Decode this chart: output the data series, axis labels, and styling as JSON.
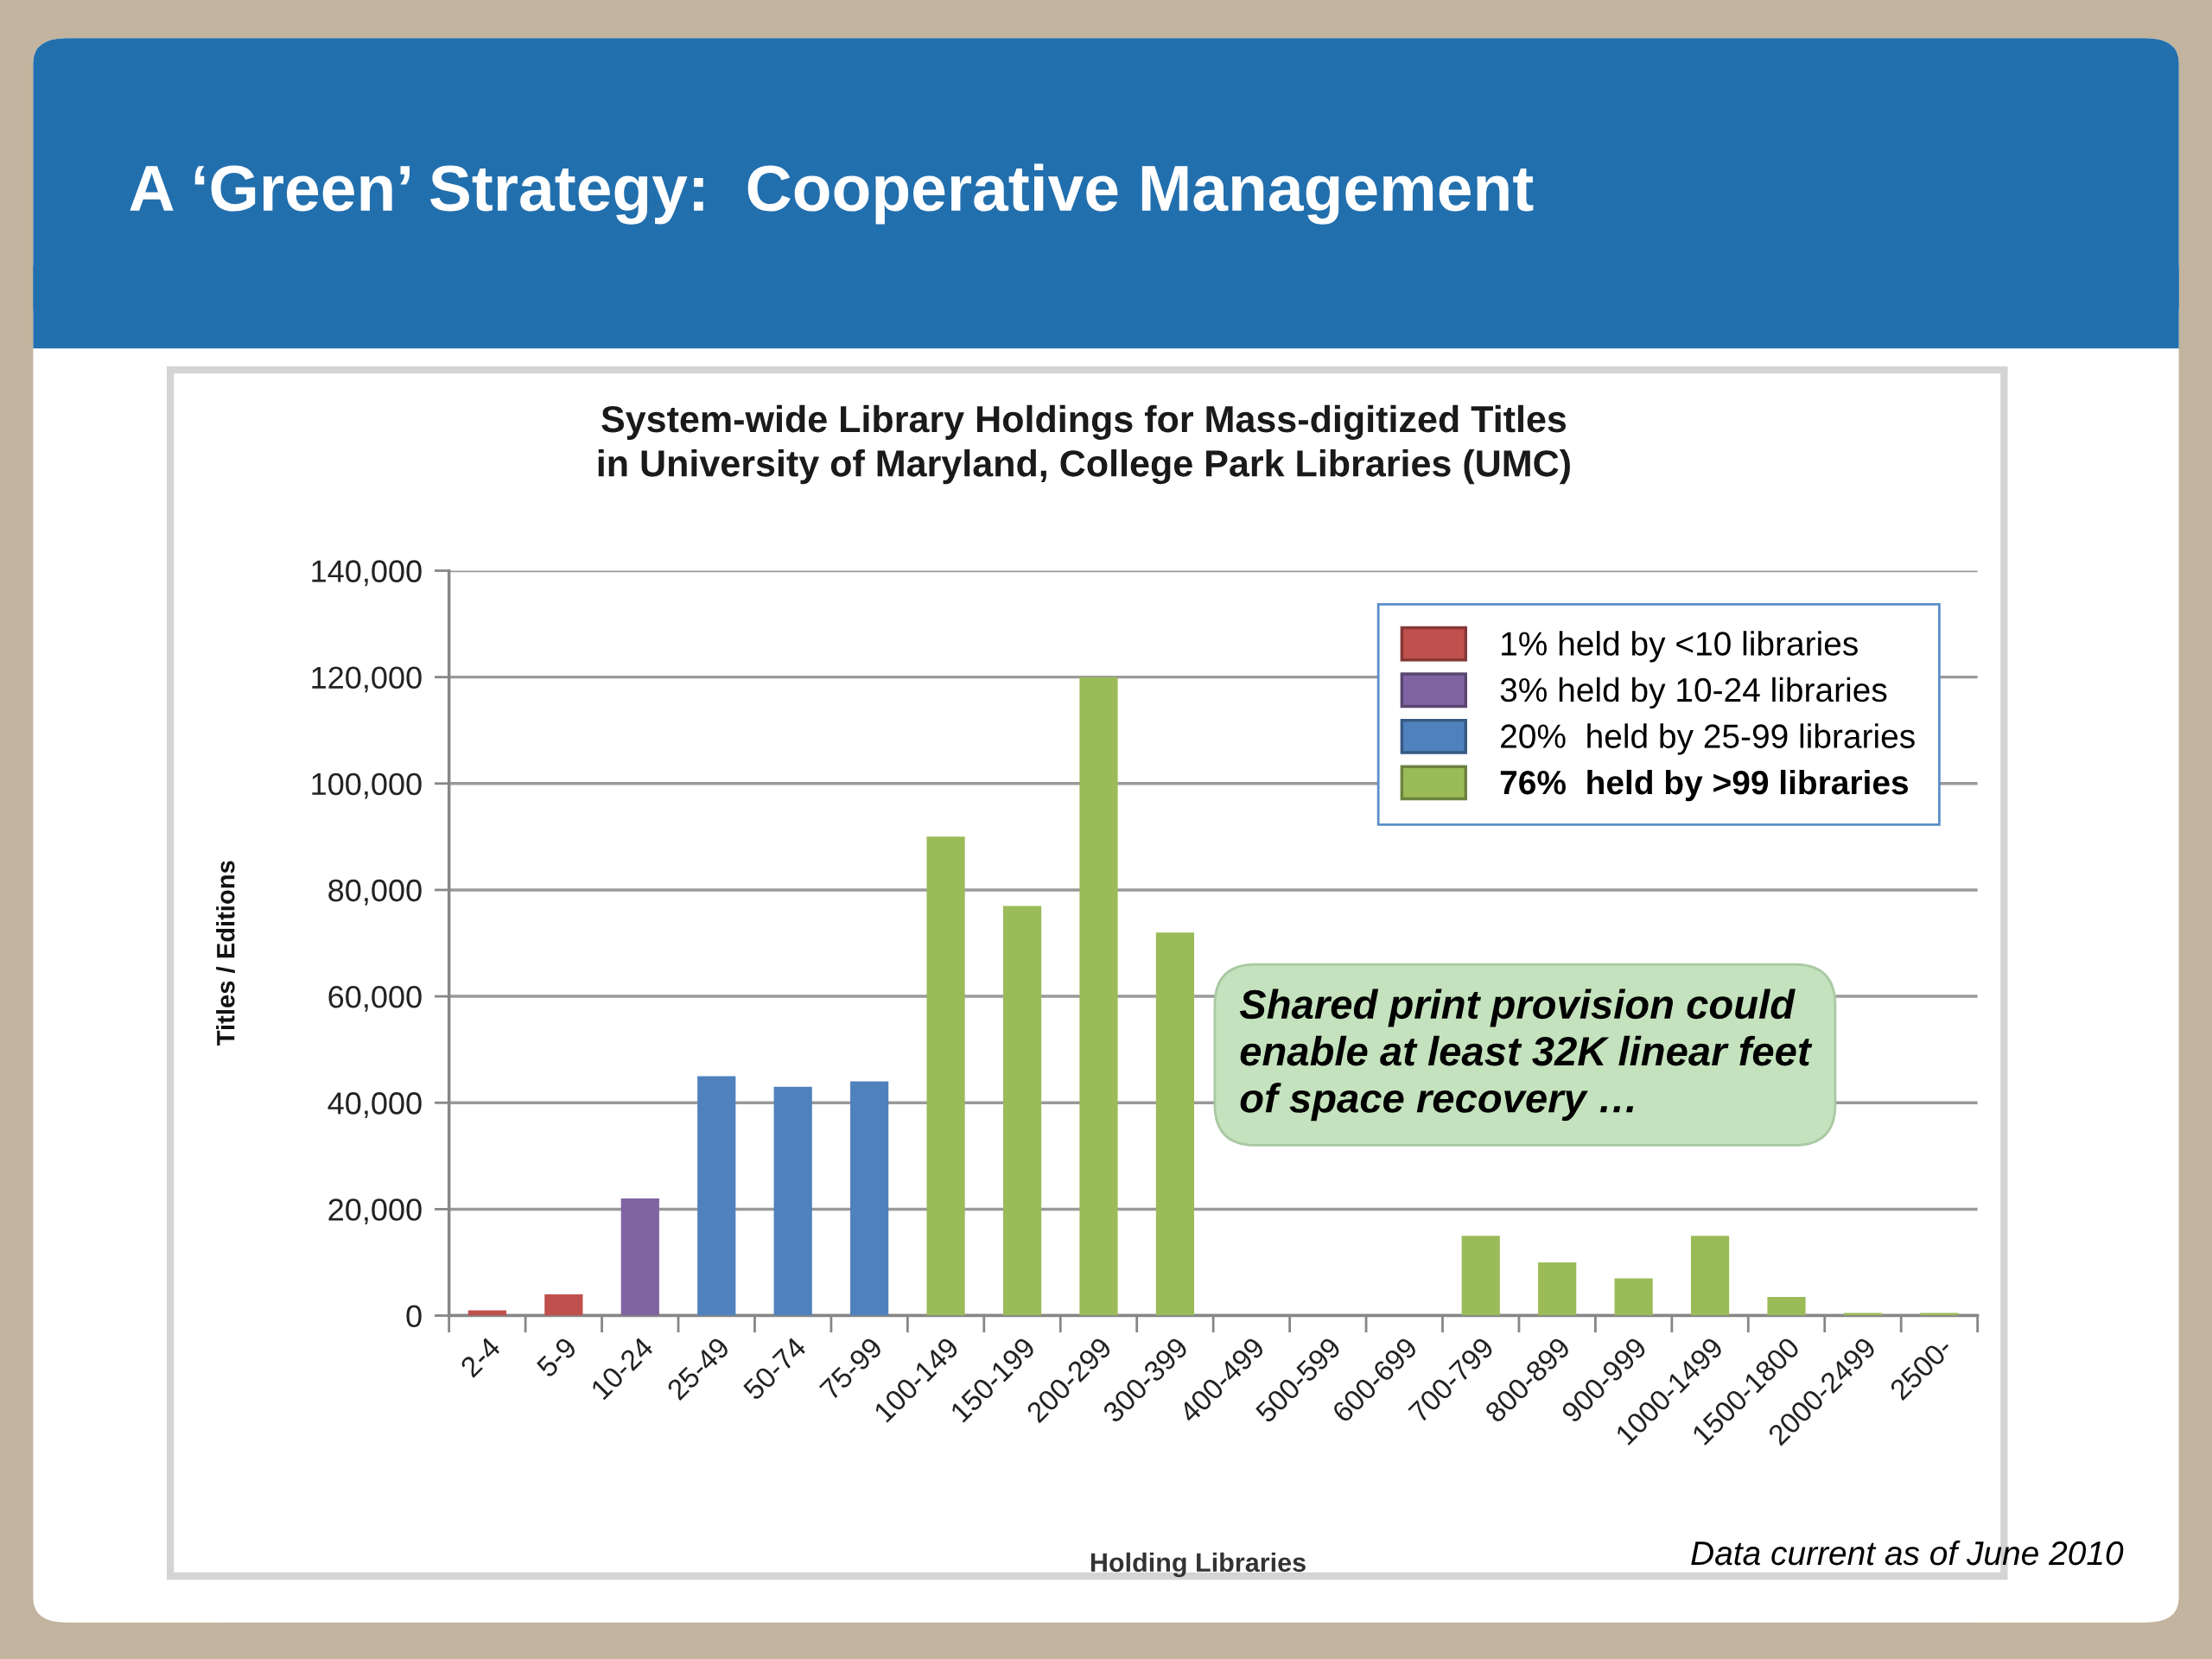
{
  "chart_data": {
    "type": "bar",
    "title": "A ‘Green’ Strategy:  Cooperative Management",
    "subtitle": "System-wide Library Holdings for Mass-digitized Titles\nin University of Maryland, College Park Libraries (UMC)",
    "xlabel": "Holding Libraries",
    "ylabel": "Titles / Editions",
    "categories": [
      "2-4",
      "5-9",
      "10-24",
      "25-49",
      "50-74",
      "75-99",
      "100-149",
      "150-199",
      "200-299",
      "300-399",
      "400-499",
      "500-599",
      "600-699",
      "700-799",
      "800-899",
      "900-999",
      "1000-1499",
      "1500-1800",
      "2000-2499",
      "2500-"
    ],
    "series": [
      {
        "name": "1% held by <10 libraries",
        "color": "#c0504d",
        "values": [
          1000,
          4000,
          null,
          null,
          null,
          null,
          null,
          null,
          null,
          null,
          null,
          null,
          null,
          null,
          null,
          null,
          null,
          null,
          null,
          null
        ]
      },
      {
        "name": "3% held by 10-24 libraries",
        "color": "#8064a2",
        "values": [
          null,
          null,
          22000,
          null,
          null,
          null,
          null,
          null,
          null,
          null,
          null,
          null,
          null,
          null,
          null,
          null,
          null,
          null,
          null,
          null
        ]
      },
      {
        "name": "20%  held by 25-99 libraries",
        "color": "#4f81bd",
        "values": [
          null,
          null,
          null,
          45000,
          43000,
          44000,
          null,
          null,
          null,
          null,
          null,
          null,
          null,
          null,
          null,
          null,
          null,
          null,
          null,
          null
        ]
      },
      {
        "name": "76%  held by >99 libraries",
        "color": "#9bbb59",
        "values": [
          null,
          null,
          null,
          null,
          null,
          null,
          90000,
          77000,
          120000,
          72000,
          null,
          null,
          null,
          15000,
          10000,
          7000,
          15000,
          3500,
          500,
          500
        ]
      }
    ],
    "stacked": true,
    "ylim": [
      0,
      140000
    ],
    "yticks": [
      0,
      {
        "value": 20000,
        "label": "20,000"
      },
      {
        "value": 40000,
        "label": "40,000"
      },
      {
        "value": 60000,
        "label": "60,000"
      },
      {
        "value": 80000,
        "label": "80,000"
      },
      {
        "value": 100000,
        "label": "100,000"
      },
      {
        "value": 120000,
        "label": "120,000"
      },
      {
        "value": 140000,
        "label": "140,000"
      }
    ],
    "grid": "y",
    "legend": "top right",
    "annotations": [
      "Shared print provision could\nenable at least 32K linear feet\nof space recovery …",
      "Data current as of June 2010"
    ]
  }
}
